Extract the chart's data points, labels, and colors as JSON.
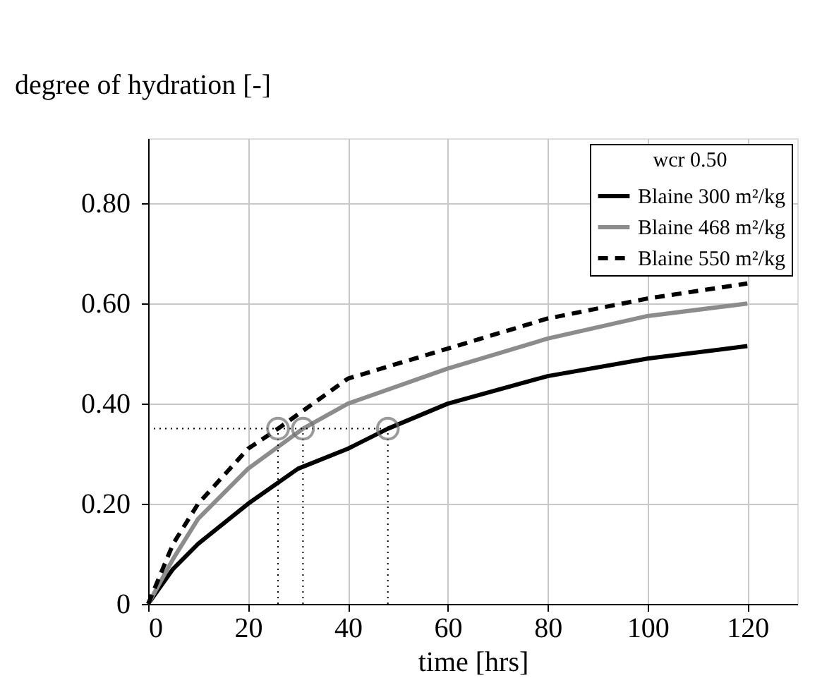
{
  "chart_data": {
    "type": "line",
    "xlabel": "time [hrs]",
    "ylabel": "degree of hydration [-]",
    "legend_title": "wcr 0.50",
    "xlim": [
      0,
      130
    ],
    "ylim": [
      0,
      0.93
    ],
    "xticks": [
      0,
      20,
      40,
      60,
      80,
      100,
      120
    ],
    "yticks": [
      0,
      {
        "value": 0.2,
        "label": "0.20"
      },
      {
        "value": 0.4,
        "label": "0.40"
      },
      {
        "value": 0.6,
        "label": "0.60"
      },
      {
        "value": 0.8,
        "label": "0.80"
      }
    ],
    "grid": true,
    "legend": "top right",
    "series": [
      {
        "name": "Blaine 300 m²/kg",
        "color": "#000000",
        "line_style": "solid",
        "x": [
          0,
          5,
          10,
          20,
          30,
          40,
          48,
          60,
          80,
          100,
          120
        ],
        "values": [
          0,
          0.07,
          0.12,
          0.2,
          0.27,
          0.31,
          0.35,
          0.4,
          0.455,
          0.49,
          0.515
        ]
      },
      {
        "name": "Blaine 468 m²/kg",
        "color": "#8c8c8c",
        "line_style": "solid",
        "x": [
          0,
          5,
          10,
          20,
          31,
          40,
          60,
          80,
          100,
          120
        ],
        "values": [
          0,
          0.09,
          0.17,
          0.27,
          0.35,
          0.4,
          0.47,
          0.53,
          0.575,
          0.6
        ]
      },
      {
        "name": "Blaine 550 m²/kg",
        "color": "#000000",
        "line_style": "dashed",
        "x": [
          0,
          5,
          10,
          20,
          26,
          40,
          60,
          80,
          100,
          120
        ],
        "values": [
          0,
          0.12,
          0.2,
          0.31,
          0.35,
          0.45,
          0.51,
          0.57,
          0.61,
          0.64
        ]
      },
      {
        "type": "line",
        "color": "#000000",
        "line_style": "dotted",
        "x": [
          0,
          48
        ],
        "values": [
          0.35,
          0.35
        ]
      },
      {
        "type": "line",
        "color": "#000000",
        "line_style": "dotted",
        "x": [
          26,
          26
        ],
        "values": [
          0,
          0.35
        ]
      },
      {
        "type": "line",
        "color": "#000000",
        "line_style": "dotted",
        "x": [
          31,
          31
        ],
        "values": [
          0,
          0.35
        ]
      },
      {
        "type": "line",
        "color": "#000000",
        "line_style": "dotted",
        "x": [
          48,
          48
        ],
        "values": [
          0,
          0.35
        ]
      },
      {
        "type": "scatter",
        "color": "#707070",
        "marker": "circle",
        "x": [
          26,
          31,
          48
        ],
        "values": [
          0.35,
          0.35,
          0.35
        ]
      }
    ]
  }
}
